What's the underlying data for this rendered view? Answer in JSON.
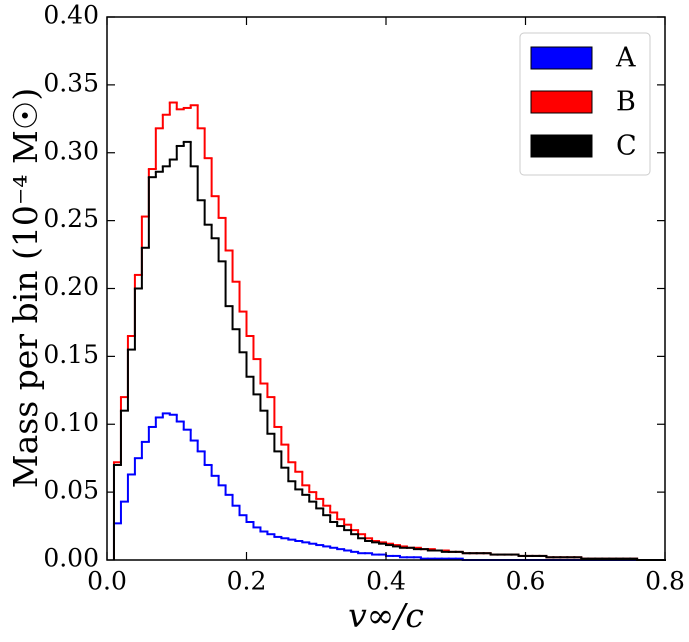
{
  "chart_data": {
    "type": "histogram_step",
    "x_label": "v∞/c",
    "y_label": "Mass per bin (10⁻⁴ M☉)",
    "xlim": [
      0,
      0.8
    ],
    "ylim": [
      0,
      0.4
    ],
    "xticks": [
      {
        "value": 0,
        "label": "0.0"
      },
      0.2,
      0.4,
      0.6,
      0.8
    ],
    "yticks": [
      {
        "value": 0,
        "label": "0.00"
      },
      0.05,
      {
        "value": 0.1,
        "label": "0.10"
      },
      0.15,
      {
        "value": 0.2,
        "label": "0.20"
      },
      0.25,
      {
        "value": 0.3,
        "label": "0.30"
      },
      0.35,
      {
        "value": 0.4,
        "label": "0.40"
      }
    ],
    "legend_position": "upper right",
    "bins": [
      0.01,
      0.02,
      0.03,
      0.04,
      0.05,
      0.06,
      0.07,
      0.08,
      0.09,
      0.1,
      0.11,
      0.12,
      0.13,
      0.14,
      0.15,
      0.16,
      0.17,
      0.18,
      0.19,
      0.2,
      0.21,
      0.22,
      0.23,
      0.24,
      0.25,
      0.26,
      0.27,
      0.28,
      0.29,
      0.3,
      0.31,
      0.32,
      0.33,
      0.34,
      0.35,
      0.36,
      0.37,
      0.38,
      0.39,
      0.4,
      0.41,
      0.42,
      0.43,
      0.44,
      0.45,
      0.46,
      0.47,
      0.48,
      0.49,
      0.5,
      0.51,
      0.52,
      0.53,
      0.54,
      0.55,
      0.56,
      0.57,
      0.58,
      0.59,
      0.6,
      0.61,
      0.62,
      0.63,
      0.64,
      0.65,
      0.66,
      0.67,
      0.68,
      0.69,
      0.7,
      0.71,
      0.72,
      0.73,
      0.74,
      0.75,
      0.76,
      0.77,
      0.78,
      0.79,
      0.8
    ],
    "series": [
      {
        "name": "A",
        "color": "#0000ff",
        "values": [
          0.027,
          0.043,
          0.063,
          0.075,
          0.087,
          0.098,
          0.105,
          0.108,
          0.107,
          0.102,
          0.096,
          0.088,
          0.08,
          0.07,
          0.062,
          0.055,
          0.048,
          0.04,
          0.033,
          0.028,
          0.024,
          0.021,
          0.019,
          0.017,
          0.016,
          0.015,
          0.014,
          0.013,
          0.012,
          0.011,
          0.01,
          0.009,
          0.008,
          0.007,
          0.006,
          0.005,
          0.005,
          0.004,
          0.004,
          0.003,
          0.003,
          0.002,
          0.002,
          0.002,
          0.001,
          0.001,
          0.001,
          0.001,
          0.001,
          0.001,
          0,
          0,
          0,
          0,
          0,
          0,
          0,
          0,
          0,
          0,
          0,
          0,
          0,
          0,
          0,
          0,
          0,
          0,
          0,
          0,
          0,
          0,
          0,
          0,
          0,
          0,
          0,
          0,
          0
        ]
      },
      {
        "name": "B",
        "color": "#ff0000",
        "values": [
          0.072,
          0.12,
          0.165,
          0.21,
          0.253,
          0.288,
          0.318,
          0.328,
          0.337,
          0.332,
          0.333,
          0.335,
          0.318,
          0.296,
          0.268,
          0.252,
          0.228,
          0.205,
          0.183,
          0.165,
          0.148,
          0.13,
          0.12,
          0.098,
          0.085,
          0.072,
          0.065,
          0.055,
          0.05,
          0.045,
          0.04,
          0.035,
          0.03,
          0.026,
          0.022,
          0.019,
          0.016,
          0.014,
          0.013,
          0.012,
          0.011,
          0.01,
          0.009,
          0.009,
          0.008,
          0.008,
          0.007,
          0.007,
          0.006,
          0.006,
          0.005,
          0.005,
          0.005,
          0.005,
          0.004,
          0.004,
          0.004,
          0.004,
          0.003,
          0.003,
          0.003,
          0.003,
          0.002,
          0.002,
          0.002,
          0.002,
          0.002,
          0.001,
          0.001,
          0.001,
          0.001,
          0.001,
          0.001,
          0.001,
          0.001,
          0,
          0,
          0,
          0
        ]
      },
      {
        "name": "C",
        "color": "#000000",
        "values": [
          0.07,
          0.11,
          0.155,
          0.2,
          0.23,
          0.282,
          0.286,
          0.29,
          0.295,
          0.305,
          0.308,
          0.29,
          0.265,
          0.247,
          0.237,
          0.22,
          0.187,
          0.17,
          0.153,
          0.135,
          0.122,
          0.11,
          0.093,
          0.08,
          0.068,
          0.058,
          0.052,
          0.048,
          0.043,
          0.038,
          0.033,
          0.028,
          0.025,
          0.022,
          0.019,
          0.016,
          0.014,
          0.013,
          0.012,
          0.011,
          0.01,
          0.009,
          0.009,
          0.008,
          0.008,
          0.007,
          0.007,
          0.006,
          0.006,
          0.006,
          0.005,
          0.005,
          0.005,
          0.005,
          0.004,
          0.004,
          0.004,
          0.004,
          0.003,
          0.003,
          0.003,
          0.003,
          0.002,
          0.002,
          0.002,
          0.002,
          0.002,
          0.001,
          0.001,
          0.001,
          0.001,
          0.001,
          0.001,
          0.001,
          0.001,
          0,
          0,
          0,
          0
        ]
      }
    ]
  }
}
